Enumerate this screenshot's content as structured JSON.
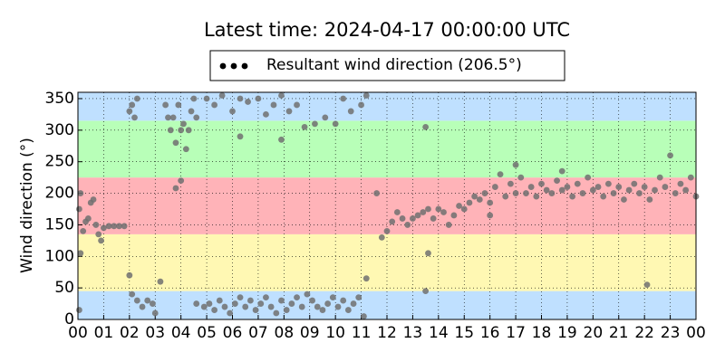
{
  "chart_data": {
    "type": "scatter",
    "title": "Latest time: 2024-04-17 00:00:00 UTC",
    "y_label": "Wind direction (°)",
    "xlim": [
      0,
      24
    ],
    "ylim": [
      0,
      360
    ],
    "xticks": [
      {
        "value": 0,
        "label": "00"
      },
      {
        "value": 1,
        "label": "01"
      },
      {
        "value": 2,
        "label": "02"
      },
      {
        "value": 3,
        "label": "03"
      },
      {
        "value": 4,
        "label": "04"
      },
      {
        "value": 5,
        "label": "05"
      },
      {
        "value": 6,
        "label": "06"
      },
      {
        "value": 7,
        "label": "07"
      },
      {
        "value": 8,
        "label": "08"
      },
      {
        "value": 9,
        "label": "09"
      },
      {
        "value": 10,
        "label": "10"
      },
      {
        "value": 11,
        "label": "11"
      },
      {
        "value": 12,
        "label": "12"
      },
      {
        "value": 13,
        "label": "13"
      },
      {
        "value": 14,
        "label": "14"
      },
      {
        "value": 15,
        "label": "15"
      },
      {
        "value": 16,
        "label": "16"
      },
      {
        "value": 17,
        "label": "17"
      },
      {
        "value": 18,
        "label": "18"
      },
      {
        "value": 19,
        "label": "19"
      },
      {
        "value": 20,
        "label": "20"
      },
      {
        "value": 21,
        "label": "21"
      },
      {
        "value": 22,
        "label": "22"
      },
      {
        "value": 23,
        "label": "23"
      },
      {
        "value": 24,
        "label": "00"
      }
    ],
    "yticks": [
      0,
      50,
      100,
      150,
      200,
      250,
      300,
      350
    ],
    "grid": true,
    "bands": [
      {
        "from": 0,
        "to": 45,
        "color": "#bfe0ff"
      },
      {
        "from": 45,
        "to": 135,
        "color": "#fff8b3"
      },
      {
        "from": 135,
        "to": 225,
        "color": "#ffb3b8"
      },
      {
        "from": 225,
        "to": 315,
        "color": "#b8ffb8"
      },
      {
        "from": 315,
        "to": 360,
        "color": "#bfe0ff"
      }
    ],
    "legend": "top",
    "series": [
      {
        "name": "Resultant wind direction (206.5°)",
        "color": "#707070",
        "x": [
          0.05,
          0.1,
          0.2,
          0.3,
          0.4,
          0.5,
          0.6,
          0.7,
          0.8,
          0.9,
          1.0,
          1.2,
          1.4,
          1.6,
          1.8,
          0.05,
          0.1,
          2.0,
          2.1,
          2.2,
          2.3,
          2.0,
          2.1,
          2.3,
          2.5,
          2.7,
          2.9,
          3.0,
          3.2,
          3.4,
          3.5,
          3.6,
          3.7,
          3.8,
          3.9,
          4.0,
          4.1,
          4.2,
          4.3,
          4.4,
          4.5,
          4.6,
          4.0,
          3.8,
          5.0,
          5.3,
          5.6,
          6.0,
          6.3,
          6.6,
          7.0,
          7.3,
          7.6,
          7.9,
          8.2,
          8.5,
          8.8,
          9.2,
          9.6,
          10.0,
          10.3,
          10.6,
          11.0,
          11.2,
          6.3,
          7.9,
          4.9,
          5.1,
          5.3,
          5.5,
          5.7,
          5.9,
          6.1,
          6.3,
          6.5,
          6.7,
          6.9,
          7.1,
          7.3,
          7.5,
          7.7,
          7.9,
          8.1,
          8.3,
          8.5,
          8.7,
          8.9,
          9.1,
          9.3,
          9.5,
          9.7,
          9.9,
          10.1,
          10.3,
          10.5,
          10.7,
          10.9,
          11.1,
          11.2,
          4.6,
          11.6,
          11.8,
          12.0,
          12.2,
          12.4,
          12.6,
          12.8,
          13.0,
          13.2,
          13.4,
          13.6,
          13.8,
          14.0,
          14.2,
          14.4,
          14.6,
          14.8,
          15.0,
          15.2,
          15.4,
          15.6,
          15.8,
          16.0,
          13.5,
          13.6,
          13.5,
          16.2,
          16.4,
          16.6,
          16.8,
          17.0,
          17.2,
          17.4,
          17.6,
          17.8,
          18.0,
          18.2,
          18.4,
          18.6,
          18.8,
          19.0,
          19.2,
          19.4,
          19.6,
          19.8,
          20.0,
          20.2,
          20.4,
          20.6,
          20.8,
          21.0,
          21.2,
          21.4,
          21.6,
          21.8,
          22.0,
          22.2,
          22.4,
          22.6,
          22.8,
          23.0,
          23.2,
          23.4,
          23.6,
          23.8,
          24.0,
          22.1,
          16.0,
          17.0,
          18.8
        ],
        "values": [
          175,
          200,
          140,
          155,
          160,
          185,
          190,
          150,
          135,
          125,
          145,
          148,
          148,
          148,
          148,
          15,
          105,
          330,
          340,
          320,
          350,
          70,
          40,
          30,
          20,
          30,
          25,
          10,
          60,
          340,
          320,
          300,
          320,
          280,
          340,
          300,
          310,
          270,
          300,
          330,
          350,
          320,
          220,
          208,
          350,
          340,
          355,
          330,
          350,
          345,
          350,
          325,
          340,
          355,
          330,
          340,
          305,
          310,
          320,
          310,
          350,
          330,
          340,
          355,
          290,
          285,
          20,
          25,
          15,
          30,
          20,
          10,
          25,
          35,
          20,
          30,
          15,
          25,
          35,
          20,
          10,
          30,
          15,
          25,
          35,
          20,
          40,
          30,
          20,
          15,
          25,
          35,
          20,
          30,
          15,
          25,
          35,
          5,
          65,
          25,
          200,
          130,
          140,
          155,
          170,
          160,
          150,
          160,
          165,
          170,
          175,
          160,
          175,
          170,
          150,
          165,
          180,
          175,
          185,
          195,
          190,
          200,
          185,
          305,
          105,
          45,
          210,
          230,
          195,
          215,
          200,
          225,
          200,
          210,
          195,
          215,
          205,
          200,
          220,
          205,
          210,
          195,
          215,
          200,
          225,
          205,
          210,
          195,
          215,
          200,
          210,
          190,
          205,
          215,
          200,
          210,
          190,
          205,
          225,
          210,
          260,
          200,
          215,
          205,
          225,
          195,
          55,
          165,
          245,
          235
        ]
      }
    ]
  }
}
